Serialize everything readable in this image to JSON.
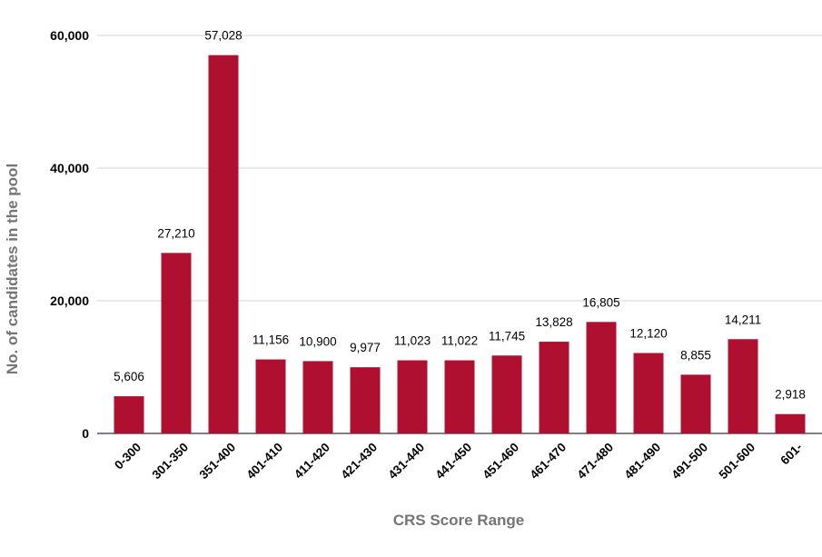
{
  "chart_data": {
    "type": "bar",
    "title": "",
    "xlabel": "CRS Score Range",
    "ylabel": "No. of candidates in the pool",
    "categories": [
      "0-300",
      "301-350",
      "351-400",
      "401-410",
      "411-420",
      "421-430",
      "431-440",
      "441-450",
      "451-460",
      "461-470",
      "471-480",
      "481-490",
      "491-500",
      "501-600",
      "601-"
    ],
    "values": [
      5606,
      27210,
      57028,
      11156,
      10900,
      9977,
      11023,
      11022,
      11745,
      13828,
      16805,
      12120,
      8855,
      14211,
      2918
    ],
    "data_labels": [
      "5,606",
      "27,210",
      "57,028",
      "11,156",
      "10,900",
      "9,977",
      "11,023",
      "11,022",
      "11,745",
      "13,828",
      "16,805",
      "12,120",
      "8,855",
      "14,211",
      "2,918"
    ],
    "ylim": [
      0,
      60000
    ],
    "yticks": [
      0,
      20000,
      40000,
      60000
    ],
    "ytick_labels": [
      "0",
      "20,000",
      "40,000",
      "60,000"
    ],
    "grid": true,
    "legend": "none",
    "bar_color": "#b01030"
  }
}
